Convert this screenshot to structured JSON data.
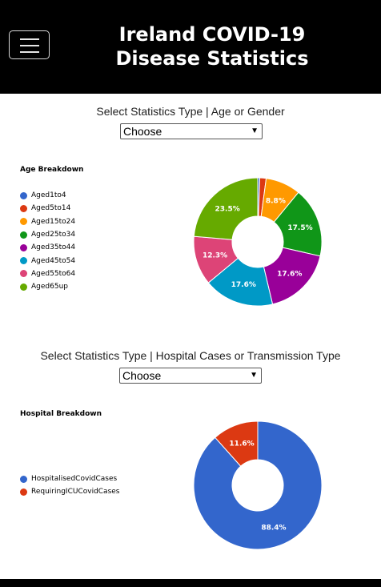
{
  "header": {
    "title_line1": "Ireland COVID-19",
    "title_line2": "Disease Statistics"
  },
  "section1": {
    "label": "Select Statistics Type | Age or Gender",
    "select_value": "Choose",
    "chart_title": "Age Breakdown"
  },
  "section2": {
    "label": "Select Statistics Type | Hospital Cases or Transmission Type",
    "select_value": "Choose",
    "chart_title": "Hospital Breakdown"
  },
  "chart_data": [
    {
      "type": "pie",
      "title": "Age Breakdown",
      "legend_position": "left",
      "categories": [
        "Aged1to4",
        "Aged5to14",
        "Aged15to24",
        "Aged25to34",
        "Aged35to44",
        "Aged45to54",
        "Aged55to64",
        "Aged65up"
      ],
      "values": [
        0.5,
        1.6,
        8.8,
        17.5,
        17.6,
        17.6,
        12.3,
        23.5
      ],
      "labels": [
        "",
        "",
        "8.8%",
        "17.5%",
        "17.6%",
        "17.6%",
        "12.3%",
        "23.5%"
      ],
      "colors": [
        "#3366cc",
        "#dc3912",
        "#ff9900",
        "#109618",
        "#990099",
        "#0099c6",
        "#dd4477",
        "#66aa00"
      ]
    },
    {
      "type": "pie",
      "title": "Hospital Breakdown",
      "legend_position": "left",
      "categories": [
        "HospitalisedCovidCases",
        "RequiringICUCovidCases"
      ],
      "values": [
        88.4,
        11.6
      ],
      "labels": [
        "88.4%",
        "11.6%"
      ],
      "colors": [
        "#3366cc",
        "#dc3912"
      ]
    }
  ]
}
